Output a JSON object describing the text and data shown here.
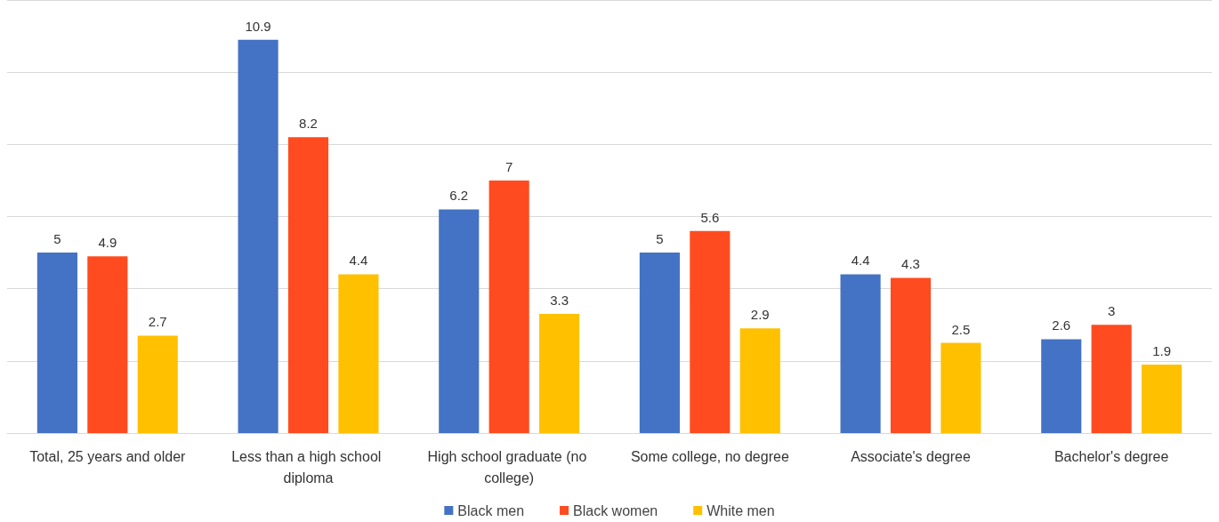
{
  "chart_data": {
    "type": "bar",
    "categories": [
      "Total, 25 years and older",
      "Less than a high school diploma",
      "High school graduate (no college)",
      "Some college, no degree",
      "Associate's degree",
      "Bachelor's degree"
    ],
    "series": [
      {
        "name": "Black men",
        "color": "#4472c4",
        "values": [
          5,
          10.9,
          6.2,
          5,
          4.4,
          2.6
        ]
      },
      {
        "name": "Black women",
        "color": "#ff4b1f",
        "values": [
          4.9,
          8.2,
          7,
          5.6,
          4.3,
          3
        ]
      },
      {
        "name": "White men",
        "color": "#ffc000",
        "values": [
          2.7,
          4.4,
          3.3,
          2.9,
          2.5,
          1.9
        ]
      }
    ],
    "tick_labels": "x",
    "grid": "y",
    "data_labels": true,
    "legend": "bottom"
  }
}
